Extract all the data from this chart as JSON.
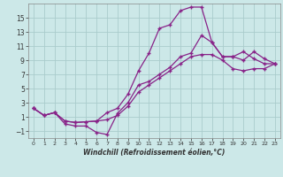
{
  "xlabel": "Windchill (Refroidissement éolien,°C)",
  "bg_color": "#cce8e8",
  "grid_color": "#aacccc",
  "line_color": "#882288",
  "marker": "+",
  "xlim": [
    -0.5,
    23.5
  ],
  "ylim": [
    -2.0,
    17.0
  ],
  "xticks": [
    0,
    1,
    2,
    3,
    4,
    5,
    6,
    7,
    8,
    9,
    10,
    11,
    12,
    13,
    14,
    15,
    16,
    17,
    18,
    19,
    20,
    21,
    22,
    23
  ],
  "yticks": [
    -1,
    1,
    3,
    5,
    7,
    9,
    11,
    13,
    15
  ],
  "line1_x": [
    0,
    1,
    2,
    3,
    4,
    5,
    6,
    7,
    8,
    9,
    10,
    11,
    12,
    13,
    14,
    15,
    16,
    17,
    18,
    19,
    20,
    21,
    22,
    23
  ],
  "line1_y": [
    2.2,
    1.2,
    1.6,
    0.4,
    0.2,
    0.3,
    0.4,
    1.6,
    2.2,
    4.2,
    7.5,
    10.0,
    13.5,
    14.0,
    16.0,
    16.5,
    16.5,
    11.5,
    9.5,
    9.5,
    10.2,
    9.2,
    8.5,
    8.5
  ],
  "line2_x": [
    0,
    1,
    2,
    3,
    4,
    5,
    6,
    7,
    8,
    9,
    10,
    11,
    12,
    13,
    14,
    15,
    16,
    17,
    18,
    19,
    20,
    21,
    22,
    23
  ],
  "line2_y": [
    2.2,
    1.2,
    1.6,
    0.0,
    -0.3,
    -0.3,
    -1.2,
    -1.5,
    1.5,
    3.0,
    5.5,
    6.0,
    7.0,
    8.0,
    9.5,
    10.0,
    12.5,
    11.5,
    9.5,
    9.5,
    9.0,
    10.2,
    9.2,
    8.5
  ],
  "line3_x": [
    0,
    1,
    2,
    3,
    4,
    5,
    6,
    7,
    8,
    9,
    10,
    11,
    12,
    13,
    14,
    15,
    16,
    17,
    18,
    19,
    20,
    21,
    22,
    23
  ],
  "line3_y": [
    2.2,
    1.2,
    1.6,
    0.4,
    0.2,
    0.3,
    0.4,
    0.6,
    1.2,
    2.5,
    4.5,
    5.5,
    6.5,
    7.5,
    8.5,
    9.5,
    9.8,
    9.8,
    9.0,
    7.8,
    7.5,
    7.8,
    7.8,
    8.5
  ]
}
